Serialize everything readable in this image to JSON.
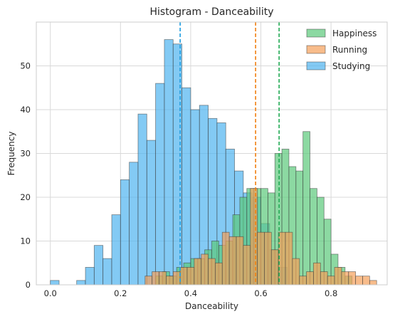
{
  "chart_data": {
    "type": "histogram",
    "title": "Histogram - Danceability",
    "xlabel": "Danceability",
    "ylabel": "Frequency",
    "xlim": [
      -0.04,
      0.96
    ],
    "ylim": [
      0,
      60
    ],
    "xticks": [
      "0.0",
      "0.2",
      "0.4",
      "0.6",
      "0.8"
    ],
    "yticks": [
      "0",
      "10",
      "20",
      "30",
      "40",
      "50"
    ],
    "grid": true,
    "legend_position": "top-right",
    "series": [
      {
        "name": "Studying",
        "color": "#4fb3f0",
        "mean": 0.37,
        "mean_color": "#1a9ce0",
        "bins": [
          [
            0.0,
            0.025,
            1
          ],
          [
            0.075,
            0.1,
            1
          ],
          [
            0.1,
            0.125,
            4
          ],
          [
            0.125,
            0.15,
            9
          ],
          [
            0.15,
            0.175,
            6
          ],
          [
            0.175,
            0.2,
            16
          ],
          [
            0.2,
            0.225,
            24
          ],
          [
            0.225,
            0.25,
            28
          ],
          [
            0.25,
            0.275,
            39
          ],
          [
            0.275,
            0.3,
            33
          ],
          [
            0.3,
            0.325,
            46
          ],
          [
            0.325,
            0.35,
            56
          ],
          [
            0.35,
            0.375,
            55
          ],
          [
            0.375,
            0.4,
            45
          ],
          [
            0.4,
            0.425,
            40
          ],
          [
            0.425,
            0.45,
            41
          ],
          [
            0.45,
            0.475,
            38
          ],
          [
            0.475,
            0.5,
            37
          ],
          [
            0.5,
            0.525,
            31
          ],
          [
            0.525,
            0.55,
            26
          ],
          [
            0.55,
            0.575,
            21
          ],
          [
            0.575,
            0.6,
            20
          ],
          [
            0.6,
            0.625,
            14
          ],
          [
            0.625,
            0.65,
            8
          ],
          [
            0.65,
            0.675,
            4
          ]
        ]
      },
      {
        "name": "Happiness",
        "color": "#5bc97a",
        "mean": 0.652,
        "mean_color": "#22aa55",
        "bins": [
          [
            0.3,
            0.32,
            2
          ],
          [
            0.32,
            0.34,
            3
          ],
          [
            0.34,
            0.36,
            2
          ],
          [
            0.36,
            0.38,
            4
          ],
          [
            0.38,
            0.4,
            5
          ],
          [
            0.4,
            0.42,
            6
          ],
          [
            0.42,
            0.44,
            6
          ],
          [
            0.44,
            0.46,
            8
          ],
          [
            0.46,
            0.48,
            10
          ],
          [
            0.48,
            0.5,
            9
          ],
          [
            0.5,
            0.52,
            10
          ],
          [
            0.52,
            0.54,
            16
          ],
          [
            0.54,
            0.56,
            20
          ],
          [
            0.56,
            0.58,
            22
          ],
          [
            0.58,
            0.6,
            22
          ],
          [
            0.6,
            0.62,
            22
          ],
          [
            0.62,
            0.64,
            21
          ],
          [
            0.64,
            0.66,
            30
          ],
          [
            0.66,
            0.68,
            31
          ],
          [
            0.68,
            0.7,
            27
          ],
          [
            0.7,
            0.72,
            26
          ],
          [
            0.72,
            0.74,
            35
          ],
          [
            0.74,
            0.76,
            22
          ],
          [
            0.76,
            0.78,
            20
          ],
          [
            0.78,
            0.8,
            15
          ],
          [
            0.8,
            0.82,
            7
          ],
          [
            0.82,
            0.84,
            4
          ],
          [
            0.84,
            0.86,
            2
          ]
        ]
      },
      {
        "name": "Running",
        "color": "#f5a05a",
        "mean": 0.585,
        "mean_color": "#f07f10",
        "bins": [
          [
            0.27,
            0.29,
            2
          ],
          [
            0.29,
            0.31,
            3
          ],
          [
            0.31,
            0.33,
            3
          ],
          [
            0.33,
            0.35,
            2
          ],
          [
            0.35,
            0.37,
            3
          ],
          [
            0.37,
            0.39,
            4
          ],
          [
            0.39,
            0.41,
            4
          ],
          [
            0.41,
            0.43,
            6
          ],
          [
            0.43,
            0.45,
            7
          ],
          [
            0.45,
            0.47,
            6
          ],
          [
            0.47,
            0.49,
            5
          ],
          [
            0.49,
            0.51,
            12
          ],
          [
            0.51,
            0.53,
            11
          ],
          [
            0.53,
            0.55,
            11
          ],
          [
            0.55,
            0.57,
            9
          ],
          [
            0.57,
            0.59,
            22
          ],
          [
            0.59,
            0.61,
            12
          ],
          [
            0.61,
            0.63,
            12
          ],
          [
            0.63,
            0.65,
            8
          ],
          [
            0.65,
            0.67,
            12
          ],
          [
            0.67,
            0.69,
            12
          ],
          [
            0.69,
            0.71,
            6
          ],
          [
            0.71,
            0.73,
            2
          ],
          [
            0.73,
            0.75,
            3
          ],
          [
            0.75,
            0.77,
            5
          ],
          [
            0.77,
            0.79,
            3
          ],
          [
            0.79,
            0.81,
            2
          ],
          [
            0.81,
            0.83,
            4
          ],
          [
            0.83,
            0.85,
            3
          ],
          [
            0.85,
            0.87,
            3
          ],
          [
            0.87,
            0.89,
            2
          ],
          [
            0.89,
            0.91,
            2
          ],
          [
            0.91,
            0.93,
            1
          ]
        ]
      }
    ],
    "legend_order": [
      "Happiness",
      "Running",
      "Studying"
    ]
  }
}
